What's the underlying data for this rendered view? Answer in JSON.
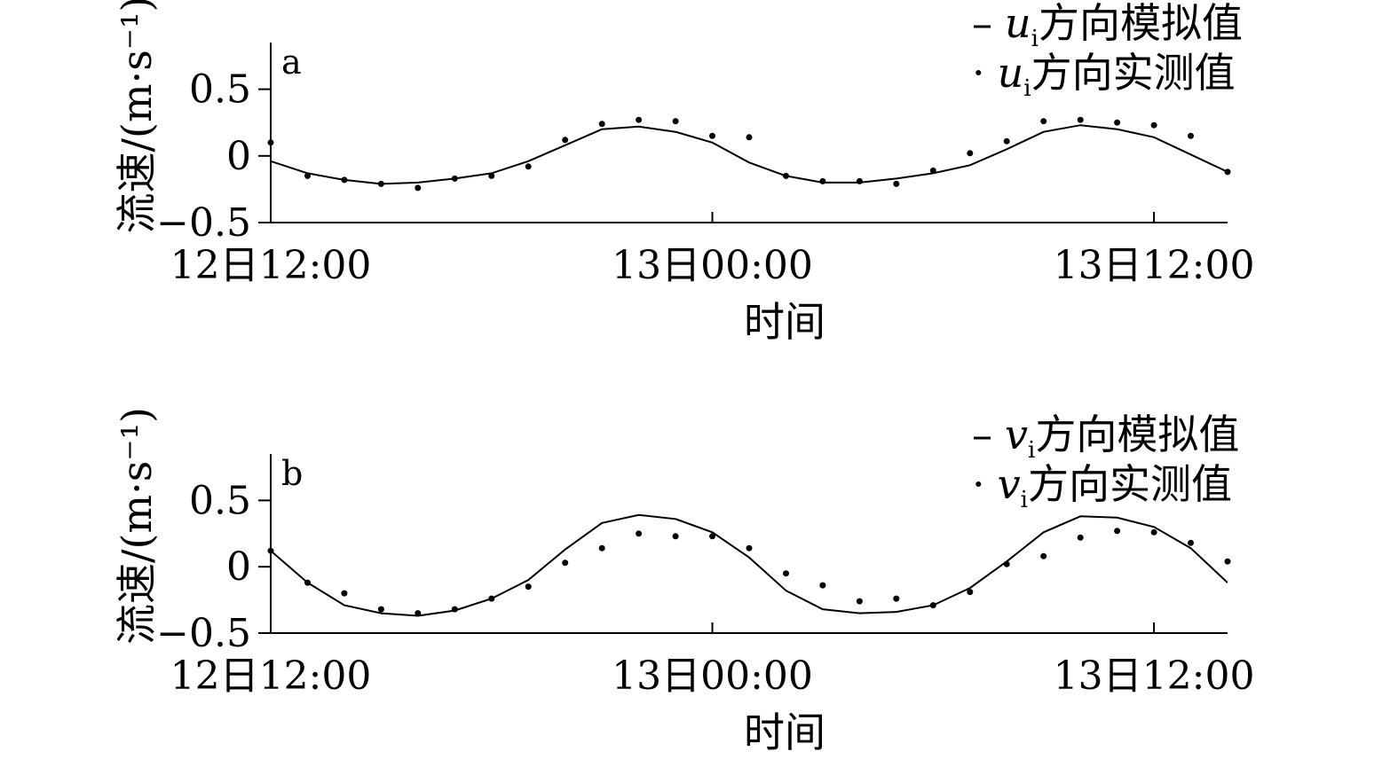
{
  "chart_data": [
    {
      "type": "line",
      "panel_label": "a",
      "xlabel": "时间",
      "ylabel": "流速/(m·s⁻¹)",
      "x_ticks": [
        "12日12:00",
        "13日00:00",
        "13日12:00"
      ],
      "x_tick_hours": [
        12,
        24,
        36
      ],
      "xlim_hours": [
        12,
        38
      ],
      "ylim": [
        -0.5,
        0.85
      ],
      "y_ticks": [
        0.5,
        0,
        -0.5
      ],
      "y_tick_labels": [
        "0.5",
        "0",
        "−0.5"
      ],
      "legend": {
        "placement": "top-right",
        "entries": [
          {
            "marker": "–",
            "var": "u",
            "sub": "i",
            "text": "方向模拟值"
          },
          {
            "marker": "·",
            "var": "u",
            "sub": "i",
            "text": "方向实测值"
          }
        ]
      },
      "series": [
        {
          "name": "ui方向模拟值",
          "style": "line",
          "x": [
            12,
            13,
            14,
            15,
            16,
            17,
            18,
            19,
            20,
            21,
            22,
            23,
            24,
            25,
            26,
            27,
            28,
            29,
            30,
            31,
            32,
            33,
            34,
            35,
            36,
            37,
            38
          ],
          "values": [
            -0.04,
            -0.13,
            -0.18,
            -0.21,
            -0.2,
            -0.17,
            -0.13,
            -0.04,
            0.08,
            0.2,
            0.22,
            0.18,
            0.1,
            -0.05,
            -0.15,
            -0.2,
            -0.2,
            -0.17,
            -0.13,
            -0.07,
            0.05,
            0.18,
            0.23,
            0.2,
            0.14,
            0.01,
            -0.12
          ]
        },
        {
          "name": "ui方向实测值",
          "style": "dot",
          "x": [
            12,
            13,
            14,
            15,
            16,
            17,
            18,
            19,
            20,
            21,
            22,
            23,
            24,
            25,
            26,
            27,
            28,
            29,
            30,
            31,
            32,
            33,
            34,
            35,
            36,
            37,
            38
          ],
          "values": [
            0.1,
            -0.15,
            -0.18,
            -0.21,
            -0.24,
            -0.17,
            -0.15,
            -0.08,
            0.12,
            0.24,
            0.27,
            0.26,
            0.15,
            0.14,
            -0.15,
            -0.19,
            -0.19,
            -0.21,
            -0.11,
            0.02,
            0.11,
            0.26,
            0.27,
            0.25,
            0.23,
            0.15,
            -0.12
          ]
        }
      ]
    },
    {
      "type": "line",
      "panel_label": "b",
      "xlabel": "时间",
      "ylabel": "流速/(m·s⁻¹)",
      "x_ticks": [
        "12日12:00",
        "13日00:00",
        "13日12:00"
      ],
      "x_tick_hours": [
        12,
        24,
        36
      ],
      "xlim_hours": [
        12,
        38
      ],
      "ylim": [
        -0.5,
        0.85
      ],
      "y_ticks": [
        0.5,
        0,
        -0.5
      ],
      "y_tick_labels": [
        "0.5",
        "0",
        "−0.5"
      ],
      "legend": {
        "placement": "top-right",
        "entries": [
          {
            "marker": "–",
            "var": "v",
            "sub": "i",
            "text": "方向模拟值"
          },
          {
            "marker": "·",
            "var": "v",
            "sub": "i",
            "text": "方向实测值"
          }
        ]
      },
      "series": [
        {
          "name": "vi方向模拟值",
          "style": "line",
          "x": [
            12,
            13,
            14,
            15,
            16,
            17,
            18,
            19,
            20,
            21,
            22,
            23,
            24,
            25,
            26,
            27,
            28,
            29,
            30,
            31,
            32,
            33,
            34,
            35,
            36,
            37,
            38
          ],
          "values": [
            0.12,
            -0.12,
            -0.29,
            -0.35,
            -0.37,
            -0.33,
            -0.24,
            -0.1,
            0.13,
            0.33,
            0.39,
            0.36,
            0.26,
            0.07,
            -0.18,
            -0.32,
            -0.35,
            -0.34,
            -0.29,
            -0.16,
            0.04,
            0.26,
            0.38,
            0.37,
            0.3,
            0.14,
            -0.12
          ]
        },
        {
          "name": "vi方向实测值",
          "style": "dot",
          "x": [
            12,
            13,
            14,
            15,
            16,
            17,
            18,
            19,
            20,
            21,
            22,
            23,
            24,
            25,
            26,
            27,
            28,
            29,
            30,
            31,
            32,
            33,
            34,
            35,
            36,
            37,
            38
          ],
          "values": [
            0.12,
            -0.12,
            -0.2,
            -0.32,
            -0.35,
            -0.32,
            -0.24,
            -0.15,
            0.03,
            0.14,
            0.25,
            0.23,
            0.23,
            0.14,
            -0.05,
            -0.14,
            -0.26,
            -0.24,
            -0.29,
            -0.19,
            0.02,
            0.08,
            0.22,
            0.27,
            0.26,
            0.18,
            0.04
          ]
        }
      ]
    }
  ]
}
